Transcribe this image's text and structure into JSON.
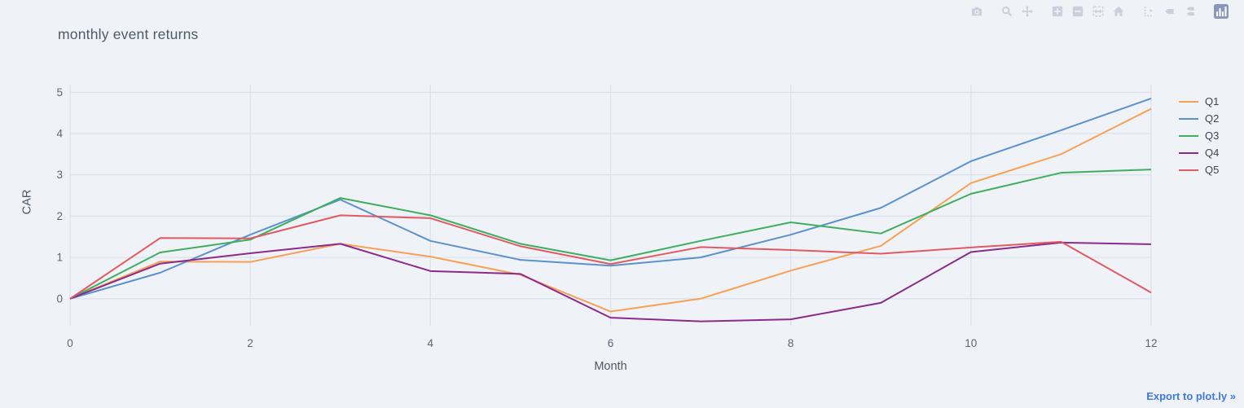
{
  "header": {
    "title": "monthly event returns"
  },
  "modebar": {
    "groups": [
      [
        "camera"
      ],
      [
        "zoom",
        "pan"
      ],
      [
        "zoom-in",
        "zoom-out",
        "autoscale",
        "reset-axes"
      ],
      [
        "toggle-spikelines",
        "hover-closest",
        "hover-compare"
      ],
      [
        "plotly-logo"
      ]
    ]
  },
  "chart_data": {
    "type": "line",
    "title": "monthly event returns",
    "xlabel": "Month",
    "ylabel": "CAR",
    "x": [
      0,
      1,
      2,
      3,
      4,
      5,
      6,
      7,
      8,
      9,
      10,
      11,
      12
    ],
    "xticks": [
      0,
      2,
      4,
      6,
      8,
      10,
      12
    ],
    "yticks": [
      0,
      1,
      2,
      3,
      4,
      5
    ],
    "xlim": [
      0,
      12
    ],
    "ylim": [
      -0.75,
      5.2
    ],
    "grid": true,
    "legend_position": "right",
    "series": [
      {
        "name": "Q1",
        "color": "#f7a154",
        "values": [
          0,
          0.9,
          0.89,
          1.33,
          1.02,
          0.58,
          -0.31,
          0.0,
          0.68,
          1.28,
          2.8,
          3.5,
          4.6
        ]
      },
      {
        "name": "Q2",
        "color": "#5992cd",
        "values": [
          0,
          0.63,
          1.55,
          2.4,
          1.4,
          0.94,
          0.8,
          1.0,
          1.55,
          2.2,
          3.33,
          4.08,
          4.85
        ]
      },
      {
        "name": "Q3",
        "color": "#3eae60",
        "values": [
          0,
          1.12,
          1.43,
          2.44,
          2.02,
          1.33,
          0.93,
          1.4,
          1.85,
          1.58,
          2.54,
          3.05,
          3.13
        ]
      },
      {
        "name": "Q4",
        "color": "#8a2b8c",
        "values": [
          0,
          0.85,
          1.1,
          1.33,
          0.67,
          0.6,
          -0.46,
          -0.55,
          -0.5,
          -0.1,
          1.13,
          1.36,
          1.32
        ]
      },
      {
        "name": "Q5",
        "color": "#e15a62",
        "values": [
          0,
          1.47,
          1.46,
          2.02,
          1.95,
          1.27,
          0.84,
          1.25,
          1.18,
          1.09,
          1.24,
          1.38,
          0.15
        ]
      }
    ]
  },
  "footer": {
    "export_label": "Export to plot.ly »"
  },
  "colors": {
    "background": "#eff2f7",
    "gridline": "#dce1ec",
    "tick_text": "#5b6571",
    "title_text": "#4e5964",
    "legend_text": "#3c4654",
    "export_link": "#3f7ae0",
    "modebar_icon": "#c9cfdb",
    "plotly_logo_tile": "#8896ba"
  }
}
